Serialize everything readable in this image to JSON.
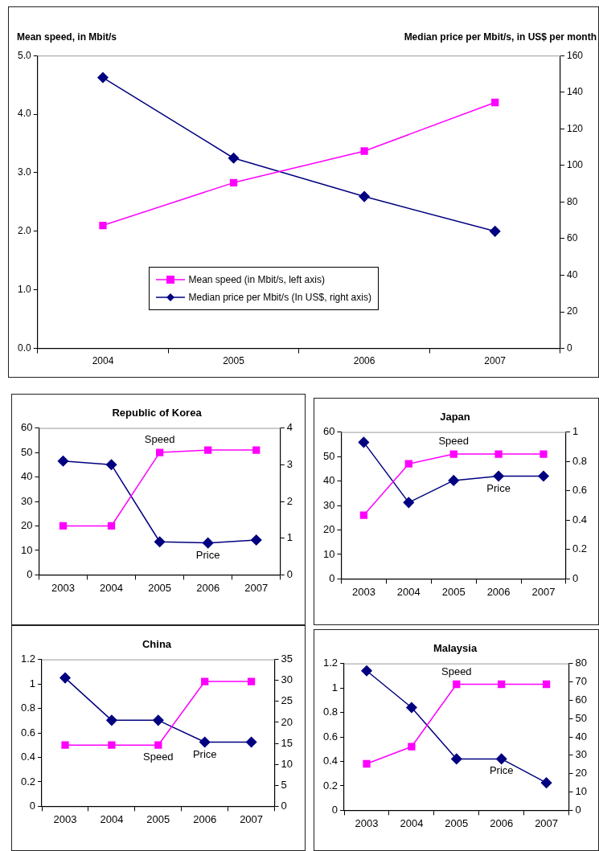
{
  "chart_data": [
    {
      "type": "line",
      "ylabel": "Mean speed, in Mbit/s",
      "y2label": "Median price per Mbit/s, in US$ per month",
      "categories": [
        "2004",
        "2005",
        "2006",
        "2007"
      ],
      "series": [
        {
          "name": "Mean speed (in Mbit/s, left axis)",
          "color": "#ff00ff",
          "marker": "square",
          "values": [
            2.1,
            2.83,
            3.37,
            4.2
          ]
        },
        {
          "name": "Median price per Mbit/s (In US$, right axis)",
          "color": "#000080",
          "marker": "diamond",
          "axis": "y2",
          "values": [
            148,
            104,
            83,
            64
          ]
        }
      ],
      "ylim": [
        0,
        5
      ],
      "yticks": [
        {
          "value": 0,
          "label": "0.0"
        },
        {
          "value": 1,
          "label": "1.0"
        },
        {
          "value": 2,
          "label": "2.0"
        },
        {
          "value": 3,
          "label": "3.0"
        },
        {
          "value": 4,
          "label": "4.0"
        },
        {
          "value": 5,
          "label": "5.0"
        }
      ],
      "y2lim": [
        0,
        160
      ],
      "y2ticks": [
        0,
        20,
        40,
        60,
        80,
        100,
        120,
        140,
        160
      ],
      "grid": false,
      "legend": "bottom"
    },
    {
      "type": "line",
      "title": "Republic of Korea",
      "categories": [
        "2003",
        "2004",
        "2005",
        "2006",
        "2007"
      ],
      "series": [
        {
          "name": "Speed",
          "color": "#ff00ff",
          "marker": "square",
          "values": [
            20,
            20,
            50,
            51,
            51
          ]
        },
        {
          "name": "Price",
          "color": "#000080",
          "marker": "diamond",
          "axis": "y2",
          "values": [
            3.1,
            3.0,
            0.9,
            0.87,
            0.95
          ]
        }
      ],
      "ylim": [
        0,
        60
      ],
      "yticks": [
        0,
        10,
        20,
        30,
        40,
        50,
        60
      ],
      "y2lim": [
        0,
        4
      ],
      "y2ticks": [
        0,
        1,
        2,
        3,
        4
      ],
      "grid": false,
      "legend": false
    },
    {
      "type": "line",
      "title": "Japan",
      "categories": [
        "2003",
        "2004",
        "2005",
        "2006",
        "2007"
      ],
      "series": [
        {
          "name": "Speed",
          "color": "#ff00ff",
          "marker": "square",
          "values": [
            26,
            47,
            51,
            51,
            51
          ]
        },
        {
          "name": "Price",
          "color": "#000080",
          "marker": "diamond",
          "axis": "y2",
          "values": [
            0.93,
            0.52,
            0.67,
            0.7,
            0.7
          ]
        }
      ],
      "ylim": [
        0,
        60
      ],
      "yticks": [
        0,
        10,
        20,
        30,
        40,
        50,
        60
      ],
      "y2lim": [
        0,
        1
      ],
      "y2ticks": [
        0,
        0.2,
        0.4,
        0.6,
        0.8,
        1
      ],
      "grid": false,
      "legend": false
    },
    {
      "type": "line",
      "title": "China",
      "categories": [
        "2003",
        "2004",
        "2005",
        "2006",
        "2007"
      ],
      "series": [
        {
          "name": "Speed",
          "color": "#ff00ff",
          "marker": "square",
          "values": [
            0.5,
            0.5,
            0.5,
            1.02,
            1.02
          ]
        },
        {
          "name": "Price",
          "color": "#000080",
          "marker": "diamond",
          "axis": "y2",
          "values": [
            30.6,
            20.5,
            20.5,
            15.3,
            15.3
          ]
        }
      ],
      "ylim": [
        0,
        1.2
      ],
      "yticks": [
        0,
        0.2,
        0.4,
        0.6,
        0.8,
        1,
        1.2
      ],
      "y2lim": [
        0,
        35
      ],
      "y2ticks": [
        0,
        5,
        10,
        15,
        20,
        25,
        30,
        35
      ],
      "grid": false,
      "legend": false
    },
    {
      "type": "line",
      "title": "Malaysia",
      "categories": [
        "2003",
        "2004",
        "2005",
        "2006",
        "2007"
      ],
      "series": [
        {
          "name": "Speed",
          "color": "#ff00ff",
          "marker": "square",
          "values": [
            0.38,
            0.52,
            1.03,
            1.03,
            1.03
          ]
        },
        {
          "name": "Price",
          "color": "#000080",
          "marker": "diamond",
          "axis": "y2",
          "values": [
            76,
            56,
            28,
            28,
            15
          ]
        }
      ],
      "ylim": [
        0,
        1.2
      ],
      "yticks": [
        0,
        0.2,
        0.4,
        0.6,
        0.8,
        1,
        1.2
      ],
      "y2lim": [
        0,
        80
      ],
      "y2ticks": [
        0,
        10,
        20,
        30,
        40,
        50,
        60,
        70,
        80
      ],
      "grid": false,
      "legend": false
    }
  ]
}
